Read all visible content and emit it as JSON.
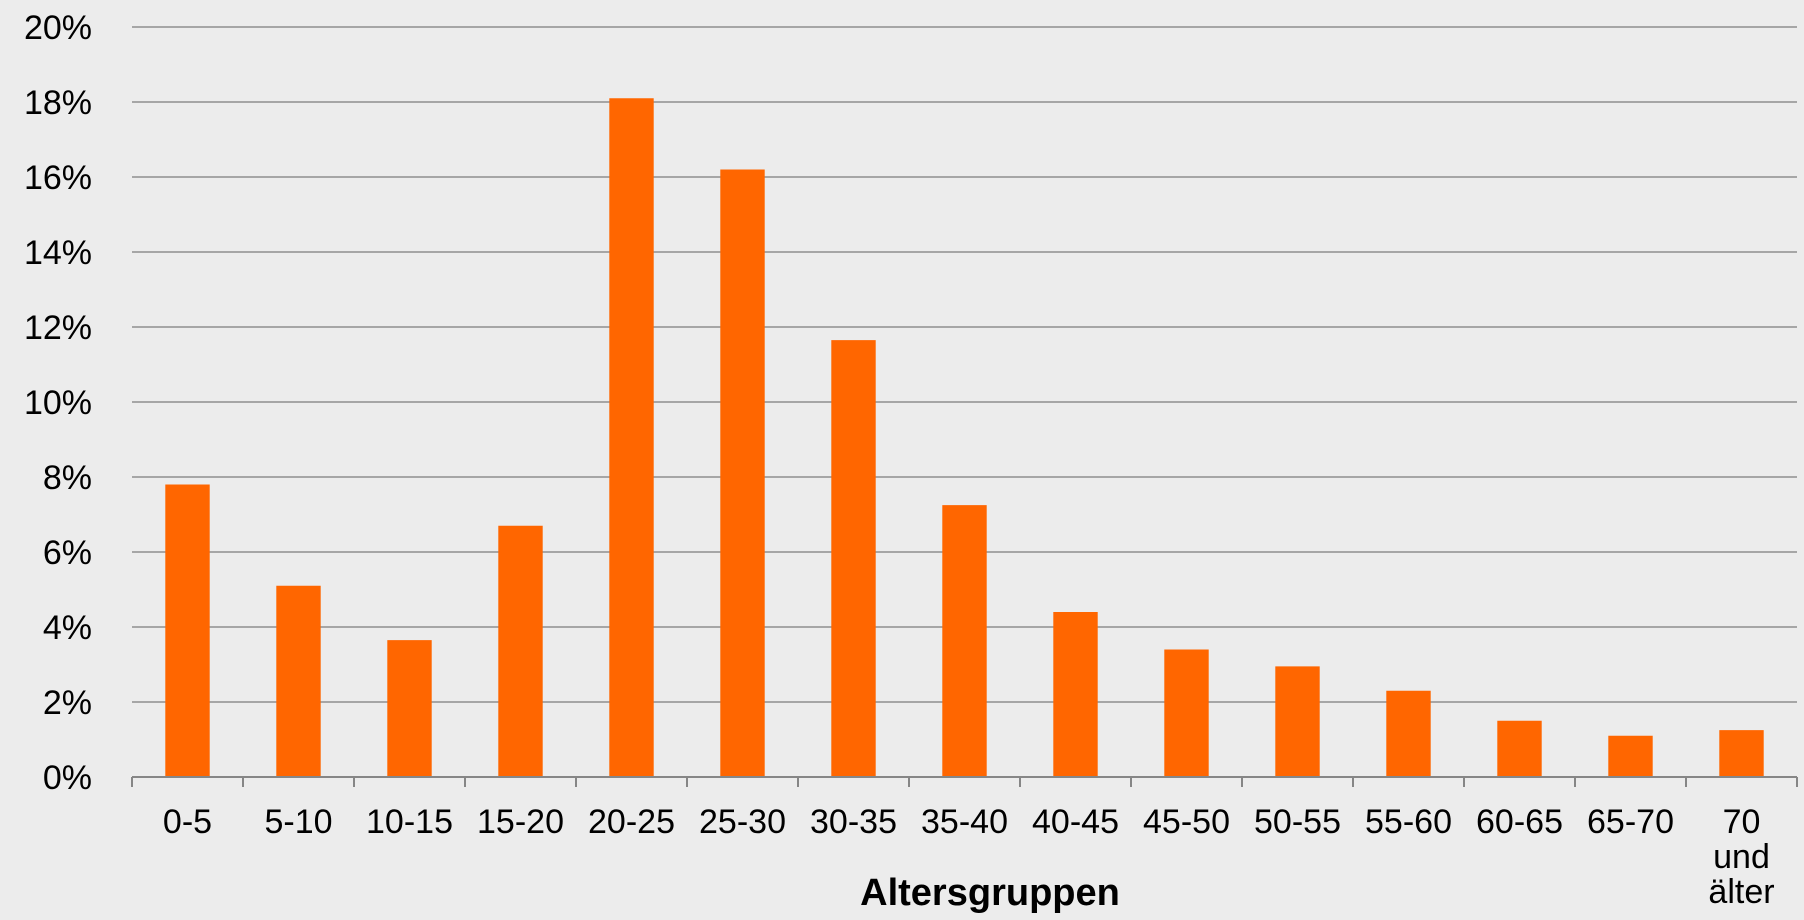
{
  "chart_data": {
    "type": "bar",
    "title": "",
    "xlabel": "Altersgruppen",
    "ylabel": "",
    "categories": [
      "0-5",
      "5-10",
      "10-15",
      "15-20",
      "20-25",
      "25-30",
      "30-35",
      "35-40",
      "40-45",
      "45-50",
      "50-55",
      "55-60",
      "60-65",
      "65-70",
      "70 und älter"
    ],
    "values": [
      7.8,
      5.1,
      3.65,
      6.7,
      18.1,
      16.2,
      11.65,
      7.25,
      4.4,
      3.4,
      2.95,
      2.3,
      1.5,
      1.1,
      1.25
    ],
    "ylim": [
      0,
      20
    ],
    "yticks": [
      0,
      2,
      4,
      6,
      8,
      10,
      12,
      14,
      16,
      18,
      20
    ],
    "ytick_format": "%",
    "grid": true,
    "legend": "none",
    "colors": {
      "bar": "#ff6600",
      "grid": "#a6a6a6",
      "axis": "#868686",
      "background": "#ececec"
    }
  }
}
